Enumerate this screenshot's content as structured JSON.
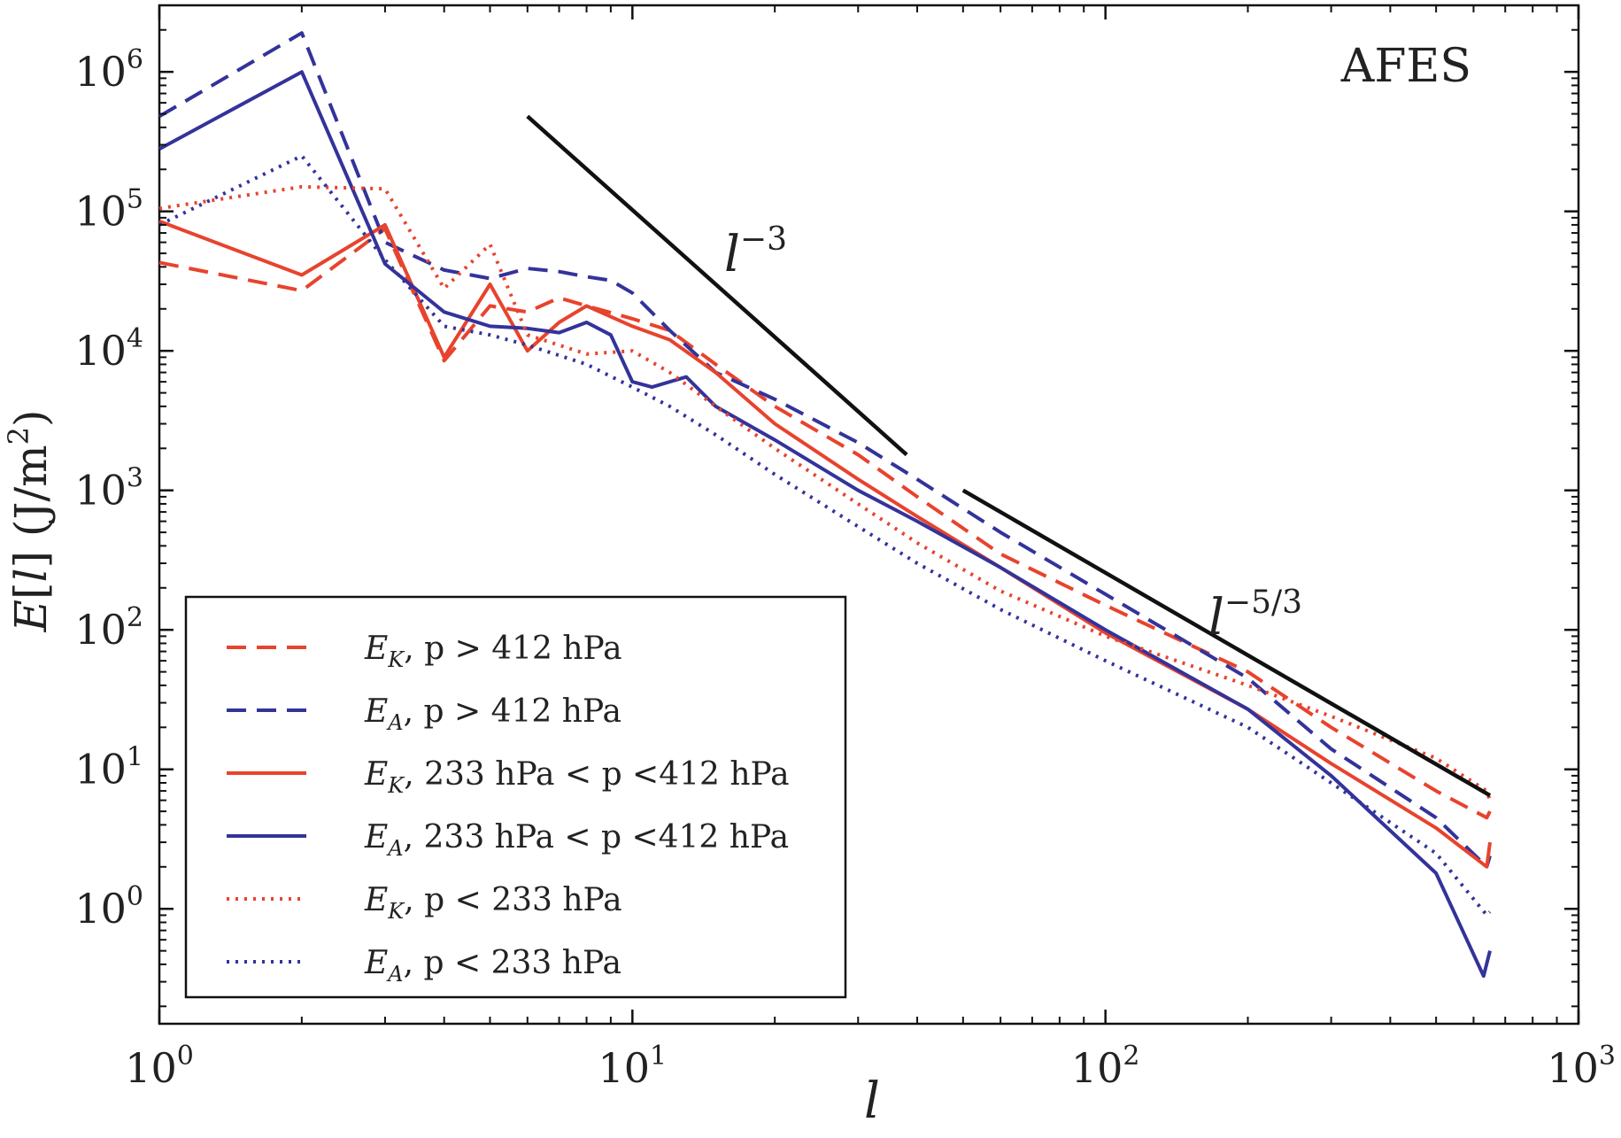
{
  "chart_data": {
    "type": "line",
    "title": "AFES",
    "xlabel": "l",
    "ylabel": "E[l] (J/m2)",
    "xscale": "log",
    "yscale": "log",
    "xlim": [
      1,
      1000
    ],
    "ylim": [
      0.15,
      3000000
    ],
    "x_ticks": [
      {
        "value": 1,
        "base": "10",
        "exp": "0"
      },
      {
        "value": 10,
        "base": "10",
        "exp": "1"
      },
      {
        "value": 100,
        "base": "10",
        "exp": "2"
      },
      {
        "value": 1000,
        "base": "10",
        "exp": "3"
      }
    ],
    "y_ticks": [
      {
        "value": 1,
        "base": "10",
        "exp": "0"
      },
      {
        "value": 10,
        "base": "10",
        "exp": "1"
      },
      {
        "value": 100,
        "base": "10",
        "exp": "2"
      },
      {
        "value": 1000,
        "base": "10",
        "exp": "3"
      },
      {
        "value": 10000,
        "base": "10",
        "exp": "4"
      },
      {
        "value": 100000,
        "base": "10",
        "exp": "5"
      },
      {
        "value": 1000000,
        "base": "10",
        "exp": "6"
      }
    ],
    "grid": false,
    "legend_position": "lower-left",
    "colors": {
      "red": "#e8432d",
      "blue": "#33339a",
      "black": "#111111"
    },
    "series": [
      {
        "name": "E_K, p > 412 hPa",
        "color": "red",
        "style": "dashed",
        "x": [
          1,
          2,
          3,
          4,
          5,
          6,
          7,
          8,
          10,
          12,
          15,
          20,
          30,
          40,
          60,
          100,
          200,
          300,
          500,
          640,
          650
        ],
        "y": [
          43000,
          27000,
          75000,
          8500,
          21000,
          19000,
          24000,
          21000,
          17000,
          14000,
          8000,
          4000,
          1800,
          900,
          350,
          150,
          50,
          20,
          7,
          4.5,
          5
        ]
      },
      {
        "name": "E_A, p > 412 hPa",
        "color": "blue",
        "style": "dashed",
        "x": [
          1,
          2,
          3,
          4,
          5,
          6,
          7,
          8,
          9,
          10,
          12,
          15,
          20,
          30,
          40,
          60,
          100,
          200,
          300,
          500,
          640,
          650
        ],
        "y": [
          480000,
          1900000,
          60000,
          38000,
          33000,
          39000,
          37000,
          34000,
          32000,
          26000,
          14000,
          7000,
          4500,
          2200,
          1200,
          500,
          180,
          45,
          14,
          4.5,
          2,
          2.4
        ]
      },
      {
        "name": "E_K, 233 hPa < p <412 hPa",
        "color": "red",
        "style": "solid",
        "x": [
          1,
          2,
          3,
          4,
          5,
          6,
          7,
          8,
          10,
          12,
          15,
          20,
          30,
          40,
          60,
          100,
          200,
          300,
          500,
          640,
          650
        ],
        "y": [
          85000,
          35000,
          80000,
          9000,
          30000,
          10000,
          16000,
          21000,
          15000,
          12000,
          7000,
          3000,
          1200,
          650,
          280,
          95,
          27,
          11,
          3.8,
          2,
          3
        ]
      },
      {
        "name": "E_A, 233 hPa < p <412 hPa",
        "color": "blue",
        "style": "solid",
        "x": [
          1,
          2,
          3,
          4,
          5,
          6,
          7,
          8,
          9,
          10,
          11,
          13,
          15,
          20,
          30,
          40,
          60,
          100,
          200,
          300,
          500,
          630,
          650
        ],
        "y": [
          280000,
          1000000,
          42000,
          19000,
          15000,
          14500,
          13500,
          16000,
          13000,
          6000,
          5500,
          6500,
          4000,
          2300,
          1000,
          600,
          280,
          100,
          27,
          9,
          1.8,
          0.33,
          0.5
        ]
      },
      {
        "name": "E_K, p < 233 hPa",
        "color": "red",
        "style": "dotted",
        "x": [
          1,
          2,
          3,
          4,
          5,
          6,
          8,
          10,
          12,
          15,
          20,
          30,
          40,
          60,
          100,
          200,
          300,
          500,
          640,
          650
        ],
        "y": [
          105000,
          150000,
          145000,
          28000,
          58000,
          13000,
          9500,
          10000,
          7000,
          4000,
          2000,
          800,
          420,
          190,
          90,
          40,
          24,
          12,
          7,
          6
        ]
      },
      {
        "name": "E_A, p < 233 hPa",
        "color": "blue",
        "style": "dotted",
        "x": [
          1,
          2,
          3,
          4,
          5,
          6,
          8,
          10,
          12,
          15,
          20,
          30,
          40,
          60,
          100,
          200,
          300,
          500,
          640,
          650
        ],
        "y": [
          80000,
          250000,
          45000,
          15000,
          13000,
          11000,
          8000,
          5500,
          4000,
          2500,
          1300,
          550,
          300,
          140,
          60,
          20,
          8,
          2.5,
          0.9,
          0.95
        ]
      }
    ],
    "reference_lines": [
      {
        "label_base": "l",
        "label_exp": "−3",
        "x": [
          6,
          38
        ],
        "y": [
          480000,
          1800
        ]
      },
      {
        "label_base": "l",
        "label_exp": "−5/3",
        "x": [
          50,
          650
        ],
        "y": [
          1000,
          6.5
        ]
      }
    ],
    "legend_entries": [
      {
        "sym": "E",
        "sub": "K",
        "rest": ", p > 412 hPa"
      },
      {
        "sym": "E",
        "sub": "A",
        "rest": ", p > 412 hPa"
      },
      {
        "sym": "E",
        "sub": "K",
        "rest": ", 233 hPa < p <412 hPa"
      },
      {
        "sym": "E",
        "sub": "A",
        "rest": ", 233 hPa < p <412 hPa"
      },
      {
        "sym": "E",
        "sub": "K",
        "rest": ", p < 233 hPa"
      },
      {
        "sym": "E",
        "sub": "A",
        "rest": ", p < 233 hPa"
      }
    ],
    "ylabel_parts": {
      "e": "E",
      "l": "l",
      "unit": " (J/m",
      "sq": "2",
      "close": ")"
    }
  }
}
